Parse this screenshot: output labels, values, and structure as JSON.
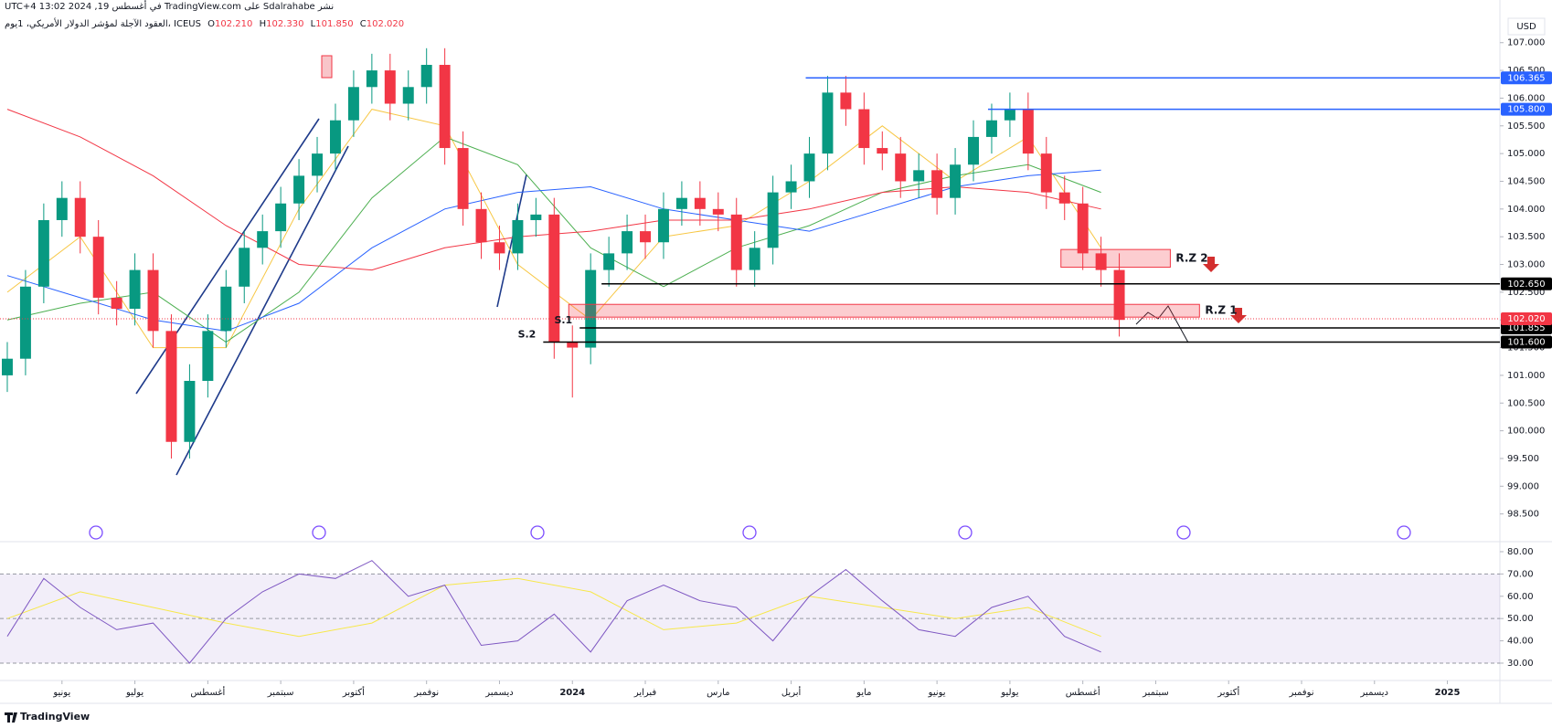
{
  "header": {
    "published": "نشر Sdalrahabe على TradingView.com في أغسطس 19, 2024 13:02 UTC+4",
    "symbol": "العقود الآجلة لمؤشر الدولار الأمريكي، 1يوم، ICEUS",
    "ohlc": [
      {
        "label": "O",
        "value": "102.210"
      },
      {
        "label": "H",
        "value": "102.330"
      },
      {
        "label": "L",
        "value": "101.850"
      },
      {
        "label": "C",
        "value": "102.020"
      }
    ],
    "currency": "USD"
  },
  "footer": "TradingView",
  "chart_data": [
    {
      "type": "candlestick",
      "x": [
        -0.75,
        -0.5,
        -0.25,
        0,
        0.25,
        0.5,
        0.75,
        1,
        1.25,
        1.5,
        1.75,
        2,
        2.25,
        2.5,
        2.75,
        3,
        3.25,
        3.5,
        3.75,
        4,
        4.25,
        4.5,
        4.75,
        5,
        5.25,
        5.5,
        5.75,
        6,
        6.25,
        6.5,
        6.75,
        7,
        7.25,
        7.5,
        7.75,
        8,
        8.25,
        8.5,
        8.75,
        9,
        9.25,
        9.5,
        9.75,
        10,
        10.25,
        10.5,
        10.75,
        11,
        11.25,
        11.5,
        11.75,
        12,
        12.25,
        12.5,
        12.75,
        13,
        13.25,
        13.5,
        13.75,
        14,
        14.25,
        14.5
      ],
      "open": [
        101.0,
        101.3,
        102.6,
        103.8,
        104.2,
        103.5,
        102.4,
        102.2,
        102.9,
        101.8,
        99.8,
        100.9,
        101.8,
        102.6,
        103.3,
        103.6,
        104.1,
        104.6,
        105.0,
        105.6,
        106.2,
        106.5,
        105.9,
        106.2,
        106.6,
        105.1,
        104.0,
        103.4,
        103.2,
        103.8,
        103.9,
        101.6,
        101.5,
        102.9,
        103.2,
        103.6,
        103.4,
        104.0,
        104.2,
        104.0,
        103.9,
        102.9,
        103.3,
        104.3,
        104.5,
        105.0,
        106.1,
        105.8,
        105.1,
        105.0,
        104.5,
        104.7,
        104.2,
        104.8,
        105.3,
        105.6,
        105.8,
        105.0,
        104.3,
        104.1,
        103.2,
        102.9
      ],
      "high": [
        101.6,
        102.9,
        104.1,
        104.5,
        104.5,
        103.8,
        102.7,
        103.2,
        103.2,
        102.1,
        101.2,
        102.1,
        102.9,
        103.6,
        103.9,
        104.4,
        104.9,
        105.3,
        105.9,
        106.5,
        106.8,
        106.8,
        106.5,
        106.9,
        106.9,
        105.4,
        104.3,
        103.7,
        104.1,
        104.2,
        104.2,
        101.9,
        103.2,
        103.5,
        103.9,
        103.9,
        104.3,
        104.5,
        104.5,
        104.3,
        104.2,
        103.6,
        104.6,
        104.8,
        105.3,
        106.4,
        106.4,
        106.1,
        105.4,
        105.3,
        105.0,
        105.0,
        105.1,
        105.6,
        105.9,
        106.1,
        106.1,
        105.3,
        104.6,
        104.4,
        103.5,
        103.2
      ],
      "low": [
        100.7,
        101.0,
        102.3,
        103.5,
        103.2,
        102.1,
        101.9,
        101.9,
        101.5,
        99.5,
        99.5,
        100.6,
        101.5,
        102.3,
        103.0,
        103.3,
        103.8,
        104.3,
        104.7,
        105.3,
        105.9,
        105.6,
        105.6,
        105.9,
        104.8,
        103.7,
        103.1,
        102.9,
        102.9,
        103.5,
        101.3,
        100.6,
        101.2,
        102.6,
        102.9,
        103.1,
        103.1,
        103.7,
        103.7,
        103.6,
        102.6,
        102.6,
        103.0,
        104.0,
        104.2,
        104.7,
        105.5,
        104.8,
        104.7,
        104.2,
        104.2,
        103.9,
        103.9,
        104.5,
        105.0,
        105.3,
        104.7,
        104.0,
        103.8,
        102.9,
        102.6,
        101.7
      ],
      "close": [
        101.3,
        102.6,
        103.8,
        104.2,
        103.5,
        102.4,
        102.2,
        102.9,
        101.8,
        99.8,
        100.9,
        101.8,
        102.6,
        103.3,
        103.6,
        104.1,
        104.6,
        105.0,
        105.6,
        106.2,
        106.5,
        105.9,
        106.2,
        106.6,
        105.1,
        104.0,
        103.4,
        103.2,
        103.8,
        103.9,
        101.6,
        101.5,
        102.9,
        103.2,
        103.6,
        103.4,
        104.0,
        104.2,
        104.0,
        103.9,
        102.9,
        103.3,
        104.3,
        104.5,
        105.0,
        106.1,
        105.8,
        105.1,
        105.0,
        104.5,
        104.7,
        104.2,
        104.8,
        105.3,
        105.6,
        105.8,
        105.0,
        104.3,
        104.1,
        103.2,
        102.9,
        102.0
      ],
      "up_color": "#089981",
      "down_color": "#f23645",
      "ma_x": [
        -0.75,
        0.25,
        1.25,
        2.25,
        3.25,
        4.25,
        5.25,
        6.25,
        7.25,
        8.25,
        9.25,
        10.25,
        11.25,
        12.25,
        13.25,
        14.25
      ],
      "moving_averages": [
        {
          "color": "#f7c744",
          "values": [
            102.5,
            103.5,
            101.5,
            101.5,
            104.0,
            105.8,
            105.5,
            103.0,
            102.0,
            103.5,
            103.7,
            104.5,
            105.5,
            104.5,
            105.3,
            103.3
          ]
        },
        {
          "color": "#4caf50",
          "values": [
            102.0,
            102.3,
            102.5,
            101.6,
            102.5,
            104.2,
            105.3,
            104.8,
            103.3,
            102.6,
            103.3,
            103.7,
            104.3,
            104.6,
            104.8,
            104.3
          ]
        },
        {
          "color": "#2962ff",
          "values": [
            102.8,
            102.4,
            102.0,
            101.8,
            102.3,
            103.3,
            104.0,
            104.3,
            104.4,
            104.0,
            103.8,
            103.6,
            104.0,
            104.4,
            104.6,
            104.7
          ]
        },
        {
          "color": "#f23645",
          "values": [
            105.8,
            105.3,
            104.6,
            103.7,
            103.0,
            102.9,
            103.3,
            103.5,
            103.6,
            103.8,
            103.8,
            104.0,
            104.3,
            104.4,
            104.3,
            104.0
          ]
        }
      ],
      "levels": [
        {
          "value": 106.365,
          "label": "106.365",
          "color": "#2962ff",
          "from": 10.2
        },
        {
          "value": 105.8,
          "label": "105.800",
          "color": "#2962ff",
          "from": 12.7
        },
        {
          "value": 102.65,
          "label": "102.650",
          "color": "#000000",
          "from": 7.4
        },
        {
          "value": 101.855,
          "label": "101.855",
          "color": "#000000",
          "from": 7.1
        },
        {
          "value": 101.6,
          "label": "101.600",
          "color": "#000000",
          "from": 6.6
        }
      ],
      "last": {
        "value": 102.02,
        "label": "102.020",
        "color": "#f23645"
      },
      "zones": [
        {
          "label": "R.Z 1",
          "low": 102.05,
          "high": 102.28,
          "from": 6.95,
          "to": 15.6
        },
        {
          "label": "R.Z 2",
          "low": 102.95,
          "high": 103.27,
          "from": 13.7,
          "to": 15.2
        }
      ],
      "supports": [
        {
          "label": "S.1",
          "value": 101.855,
          "at": 7.05
        },
        {
          "label": "S.2",
          "value": 101.6,
          "at": 6.55
        }
      ],
      "xlim": [
        -0.85,
        19.72
      ],
      "ylim": [
        98.0,
        107.77
      ],
      "xticks": [
        {
          "value": 0,
          "label": "يونيو"
        },
        {
          "value": 1,
          "label": "يوليو"
        },
        {
          "value": 2,
          "label": "أغسطس"
        },
        {
          "value": 3,
          "label": "سبتمبر"
        },
        {
          "value": 4,
          "label": "أكتوبر"
        },
        {
          "value": 5,
          "label": "نوفمبر"
        },
        {
          "value": 6,
          "label": "ديسمبر"
        },
        {
          "value": 7,
          "label": "2024"
        },
        {
          "value": 8,
          "label": "فبراير"
        },
        {
          "value": 9,
          "label": "مارس"
        },
        {
          "value": 10,
          "label": "أبريل"
        },
        {
          "value": 11,
          "label": "مايو"
        },
        {
          "value": 12,
          "label": "يونيو"
        },
        {
          "value": 13,
          "label": "يوليو"
        },
        {
          "value": 14,
          "label": "أغسطس"
        },
        {
          "value": 15,
          "label": "سبتمبر"
        },
        {
          "value": 16,
          "label": "أكتوبر"
        },
        {
          "value": 17,
          "label": "نوفمبر"
        },
        {
          "value": 18,
          "label": "ديسمبر"
        },
        {
          "value": 19,
          "label": "2025"
        }
      ],
      "yticks": [
        {
          "value": 98.5,
          "label": "98.500"
        },
        {
          "value": 99,
          "label": "99.000"
        },
        {
          "value": 99.5,
          "label": "99.500"
        },
        {
          "value": 100,
          "label": "100.000"
        },
        {
          "value": 100.5,
          "label": "100.500"
        },
        {
          "value": 101,
          "label": "101.000"
        },
        {
          "value": 101.5,
          "label": "101.500"
        },
        {
          "value": 102,
          "label": "102.000"
        },
        {
          "value": 102.5,
          "label": "102.500"
        },
        {
          "value": 103,
          "label": "103.000"
        },
        {
          "value": 103.5,
          "label": "103.500"
        },
        {
          "value": 104,
          "label": "104.000"
        },
        {
          "value": 104.5,
          "label": "104.500"
        },
        {
          "value": 105,
          "label": "105.000"
        },
        {
          "value": 105.5,
          "label": "105.500"
        },
        {
          "value": 106,
          "label": "106.000"
        },
        {
          "value": 106.5,
          "label": "106.500"
        },
        {
          "value": 107,
          "label": "107.000"
        }
      ],
      "grid": false
    },
    {
      "type": "line",
      "x": [
        -0.75,
        -0.25,
        0.25,
        0.75,
        1.25,
        1.75,
        2.25,
        2.75,
        3.25,
        3.75,
        4.25,
        4.75,
        5.25,
        5.75,
        6.25,
        6.75,
        7.25,
        7.75,
        8.25,
        8.75,
        9.25,
        9.75,
        10.25,
        10.75,
        11.25,
        11.75,
        12.25,
        12.75,
        13.25,
        13.75,
        14.25
      ],
      "values": [
        42,
        68,
        55,
        45,
        48,
        30,
        50,
        62,
        70,
        68,
        76,
        60,
        65,
        38,
        40,
        52,
        35,
        58,
        65,
        58,
        55,
        40,
        60,
        72,
        58,
        45,
        42,
        55,
        60,
        42,
        35
      ],
      "color": "#7e57c2",
      "ma_x": [
        -0.75,
        0.25,
        1.25,
        2.25,
        3.25,
        4.25,
        5.25,
        6.25,
        7.25,
        8.25,
        9.25,
        10.25,
        11.25,
        12.25,
        13.25,
        14.25
      ],
      "ma_values": [
        50,
        62,
        55,
        48,
        42,
        48,
        65,
        68,
        62,
        45,
        48,
        60,
        55,
        50,
        55,
        42
      ],
      "ma_color": "#f7e84a",
      "band": [
        30,
        70
      ],
      "band_color": "#7e57c2",
      "hlines": [
        70,
        50,
        30
      ],
      "ylim": [
        22.2,
        84.5
      ],
      "yticks": [
        {
          "value": 30,
          "label": "30.00"
        },
        {
          "value": 40,
          "label": "40.00"
        },
        {
          "value": 50,
          "label": "50.00"
        },
        {
          "value": 60,
          "label": "60.00"
        },
        {
          "value": 70,
          "label": "70.00"
        },
        {
          "value": 80,
          "label": "80.00"
        }
      ]
    }
  ]
}
